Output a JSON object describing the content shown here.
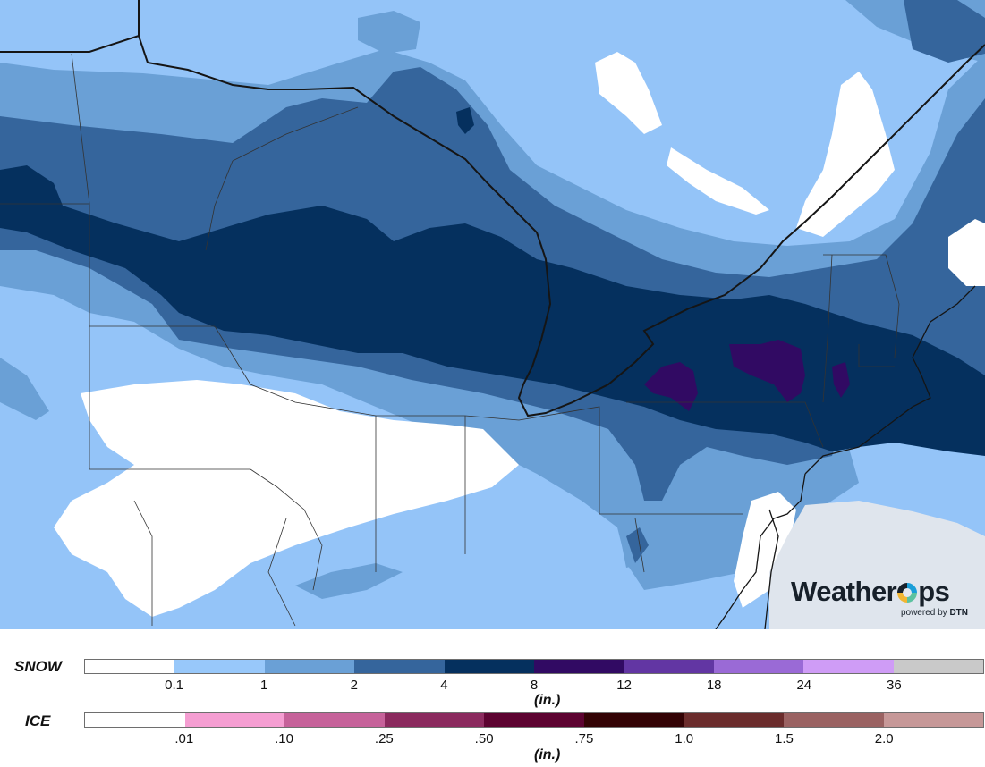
{
  "map": {
    "colors": {
      "background": "#94c4f8",
      "snow_0": "#ffffff",
      "snow_01": "#98c8fa",
      "snow_1": "#6aa0d6",
      "snow_2": "#35659c",
      "snow_4": "#05305e",
      "snow_8": "#310a63",
      "no_data": "#dfe5ed",
      "border": "#151515",
      "state_line": "#333333"
    }
  },
  "logo": {
    "brand_prefix": "Weather",
    "brand_suffix": "ps",
    "powered_text": "powered by",
    "powered_brand": "DTN"
  },
  "snow_legend": {
    "label": "SNOW",
    "unit": "(in.)",
    "colors": [
      "#ffffff",
      "#98c8fa",
      "#6aa0d6",
      "#35659c",
      "#05305e",
      "#310a63",
      "#6236a3",
      "#9a6ad6",
      "#cf9cf6",
      "#c9c9c9"
    ],
    "ticks": [
      "0.1",
      "1",
      "2",
      "4",
      "8",
      "12",
      "18",
      "24",
      "36"
    ]
  },
  "ice_legend": {
    "label": "ICE",
    "unit": "(in.)",
    "colors": [
      "#ffffff",
      "#f59ed2",
      "#c6629a",
      "#8b2a5e",
      "#5c0230",
      "#330204",
      "#6b2c2c",
      "#9a6262",
      "#c69898"
    ],
    "ticks": [
      ".01",
      ".10",
      ".25",
      ".50",
      ".75",
      "1.0",
      "1.5",
      "2.0"
    ]
  }
}
